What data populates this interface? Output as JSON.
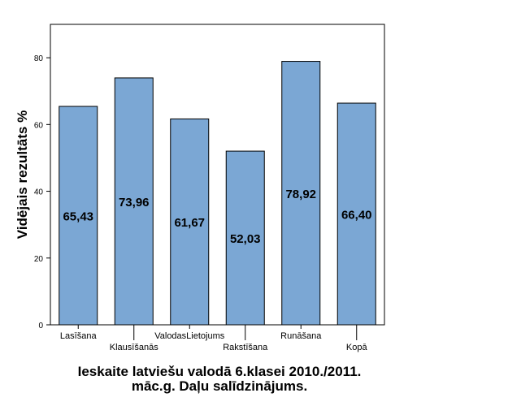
{
  "chart_data": {
    "type": "bar",
    "categories": [
      "Lasīšana",
      "Klausīšanās",
      "ValodasLietojums",
      "Rakstīšana",
      "Runāšana",
      "Kopā"
    ],
    "values": [
      65.43,
      73.96,
      61.67,
      52.03,
      78.92,
      66.4
    ],
    "data_labels": [
      "65,43",
      "73,96",
      "61,67",
      "52,03",
      "78,92",
      "66,40"
    ],
    "title_lines": [
      "Ieskaite latviešu valodā 6.klasei 2010./2011.",
      "māc.g. Daļu salīdzinājums."
    ],
    "xlabel": "",
    "ylabel": "Vidējais rezultāts %",
    "ylim": [
      0,
      90
    ],
    "yticks": [
      0,
      20,
      40,
      60,
      80
    ],
    "grid": false,
    "bar_color": "#7ba7d4",
    "bar_stroke": "#000000"
  }
}
